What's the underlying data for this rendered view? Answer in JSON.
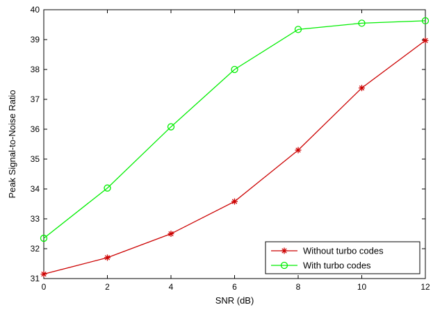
{
  "chart_data": {
    "type": "line",
    "xlabel": "SNR (dB)",
    "ylabel": "Peak Signal-to-Noise Ratio",
    "xlim": [
      0,
      12
    ],
    "ylim": [
      31,
      40
    ],
    "xticks": [
      0,
      2,
      4,
      6,
      8,
      10,
      12
    ],
    "yticks": [
      31,
      32,
      33,
      34,
      35,
      36,
      37,
      38,
      39,
      40
    ],
    "grid": false,
    "legend_position": "bottom-right",
    "x": [
      0,
      2,
      4,
      6,
      8,
      10,
      12
    ],
    "series": [
      {
        "name": "Without turbo codes",
        "color": "#cc0000",
        "marker": "star",
        "values": [
          31.15,
          31.7,
          32.5,
          33.58,
          35.3,
          37.38,
          38.97
        ]
      },
      {
        "name": "With turbo codes",
        "color": "#00ee00",
        "marker": "circle",
        "values": [
          32.35,
          34.03,
          36.08,
          38.0,
          39.34,
          39.55,
          39.63
        ]
      }
    ]
  }
}
